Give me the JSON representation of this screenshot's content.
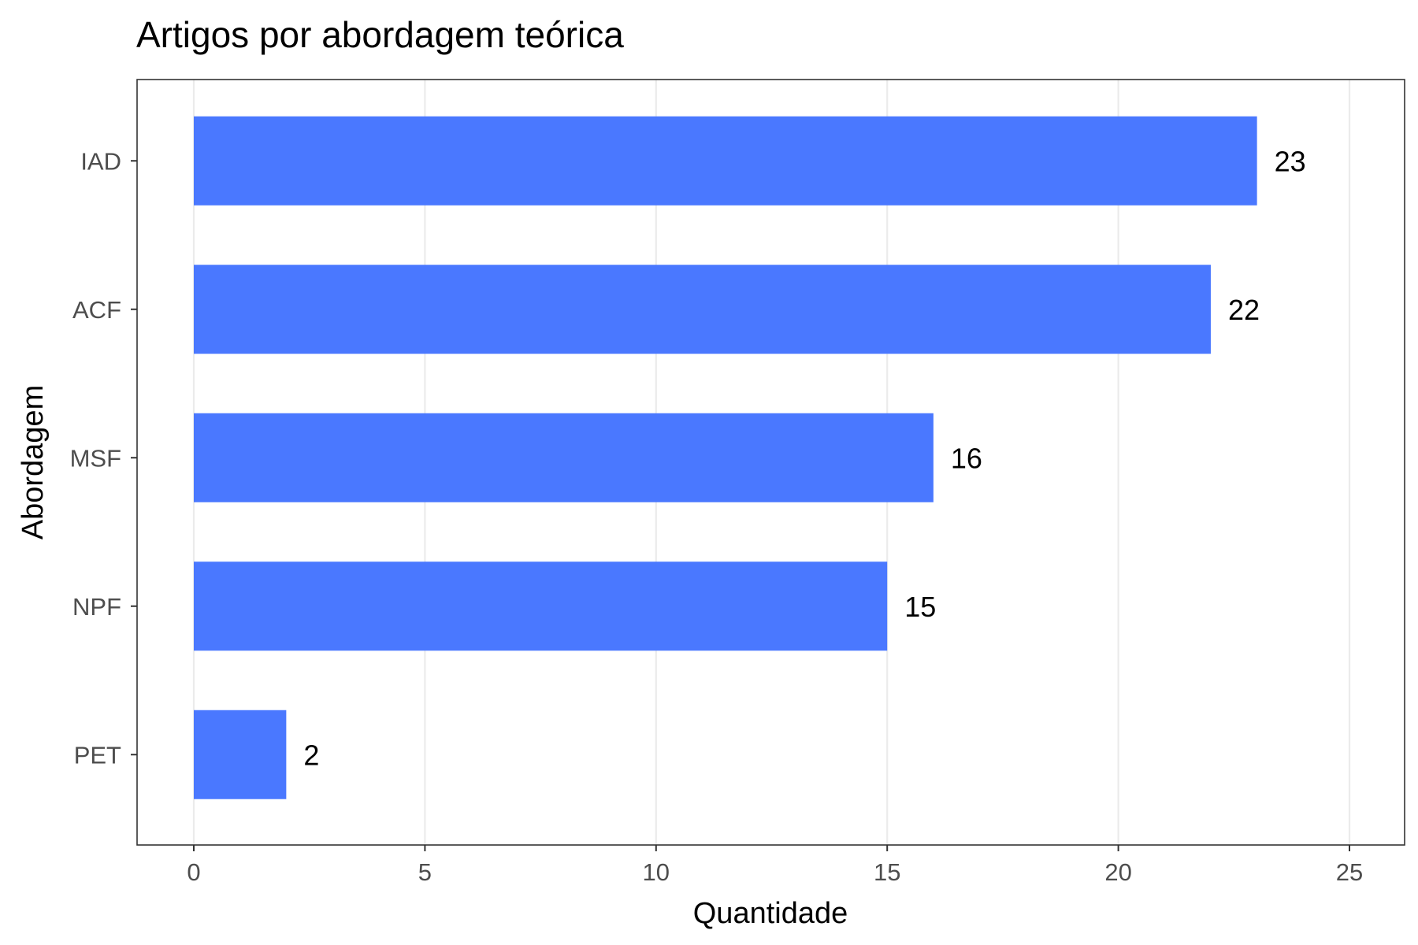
{
  "chart_data": {
    "type": "bar",
    "orientation": "horizontal",
    "title": "Artigos por abordagem teórica",
    "xlabel": "Quantidade",
    "ylabel": "Abordagem",
    "categories": [
      "IAD",
      "ACF",
      "MSF",
      "NPF",
      "PET"
    ],
    "values": [
      23,
      22,
      16,
      15,
      2
    ],
    "data_labels": [
      "23",
      "22",
      "16",
      "15",
      "2"
    ],
    "xlim": [
      0,
      25
    ],
    "x_ticks": [
      0,
      5,
      10,
      15,
      20,
      25
    ],
    "x_tick_labels": [
      "0",
      "5",
      "10",
      "15",
      "20",
      "25"
    ],
    "grid": "vertical-major",
    "legend": "none",
    "colors": {
      "bar": "#4a78ff",
      "grid": "#ebebeb",
      "panel_border": "#333333",
      "tick_label": "#4d4d4d",
      "text": "#000000"
    }
  }
}
